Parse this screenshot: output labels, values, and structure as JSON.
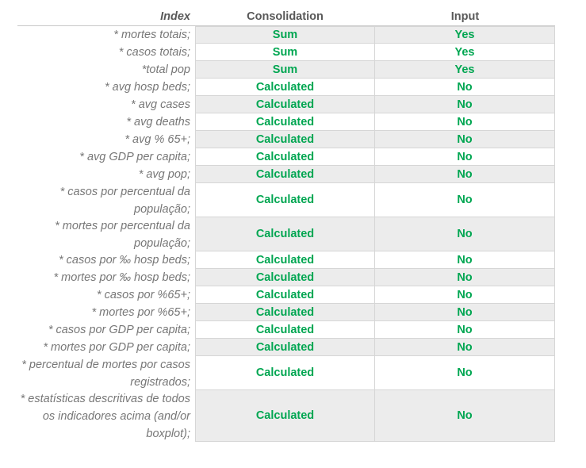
{
  "headers": {
    "index": "Index",
    "consolidation": "Consolidation",
    "input": "Input"
  },
  "colors": {
    "value_green": "#00a651",
    "shade": "#ececec",
    "label_grey": "#777777"
  },
  "rows": [
    {
      "index": "* mortes totais;",
      "consolidation": "Sum",
      "input": "Yes"
    },
    {
      "index": "* casos totais;",
      "consolidation": "Sum",
      "input": "Yes"
    },
    {
      "index": "*total pop",
      "consolidation": "Sum",
      "input": "Yes"
    },
    {
      "index": "* avg hosp beds;",
      "consolidation": "Calculated",
      "input": "No"
    },
    {
      "index": "* avg cases",
      "consolidation": "Calculated",
      "input": "No"
    },
    {
      "index": "* avg deaths",
      "consolidation": "Calculated",
      "input": "No"
    },
    {
      "index": "* avg % 65+;",
      "consolidation": "Calculated",
      "input": "No"
    },
    {
      "index": "* avg GDP per capita;",
      "consolidation": "Calculated",
      "input": "No"
    },
    {
      "index": "* avg pop;",
      "consolidation": "Calculated",
      "input": "No"
    },
    {
      "index": "* casos por percentual da população;",
      "consolidation": "Calculated",
      "input": "No"
    },
    {
      "index": "* mortes por percentual da população;",
      "consolidation": "Calculated",
      "input": "No"
    },
    {
      "index": "* casos por ‰ hosp beds;",
      "consolidation": "Calculated",
      "input": "No"
    },
    {
      "index": "* mortes por ‰ hosp beds;",
      "consolidation": "Calculated",
      "input": "No"
    },
    {
      "index": "* casos por %65+;",
      "consolidation": "Calculated",
      "input": "No"
    },
    {
      "index": "* mortes por %65+;",
      "consolidation": "Calculated",
      "input": "No"
    },
    {
      "index": "* casos por GDP per capita;",
      "consolidation": "Calculated",
      "input": "No"
    },
    {
      "index": "* mortes por GDP per capita;",
      "consolidation": "Calculated",
      "input": "No"
    },
    {
      "index": "* percentual de mortes por casos registrados;",
      "consolidation": "Calculated",
      "input": "No"
    },
    {
      "index": "* estatísticas descritivas de todos os indicadores acima (and/or boxplot);",
      "consolidation": "Calculated",
      "input": "No"
    }
  ]
}
